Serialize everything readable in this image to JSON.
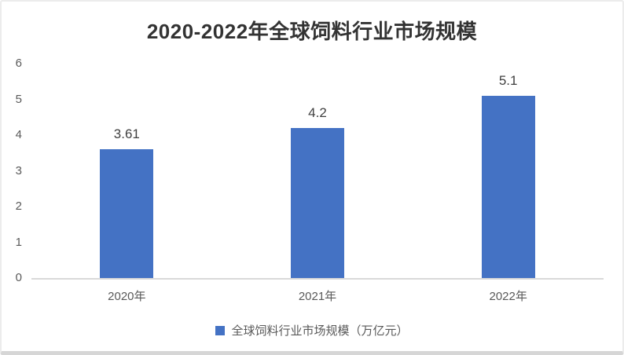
{
  "chart_data": {
    "type": "bar",
    "title": "2020-2022年全球饲料行业市场规模",
    "categories": [
      "2020年",
      "2021年",
      "2022年"
    ],
    "series": [
      {
        "name": "全球饲料行业市场规模（万亿元）",
        "values": [
          3.61,
          4.2,
          5.1
        ]
      }
    ],
    "data_labels": [
      "3.61",
      "4.2",
      "5.1"
    ],
    "y_ticks": [
      0,
      1,
      2,
      3,
      4,
      5,
      6
    ],
    "ylim": [
      0,
      6
    ],
    "xlabel": "",
    "ylabel": "",
    "grid": false,
    "legend_position": "bottom"
  },
  "legend": {
    "label": "全球饲料行业市场规模（万亿元）"
  },
  "colors": {
    "bar": "#4472C4",
    "title_text": "#333333",
    "tick_text": "#595959",
    "data_label_text": "#404040",
    "axis_line": "#d9d9d9",
    "legend_swatch": "#4472C4"
  }
}
